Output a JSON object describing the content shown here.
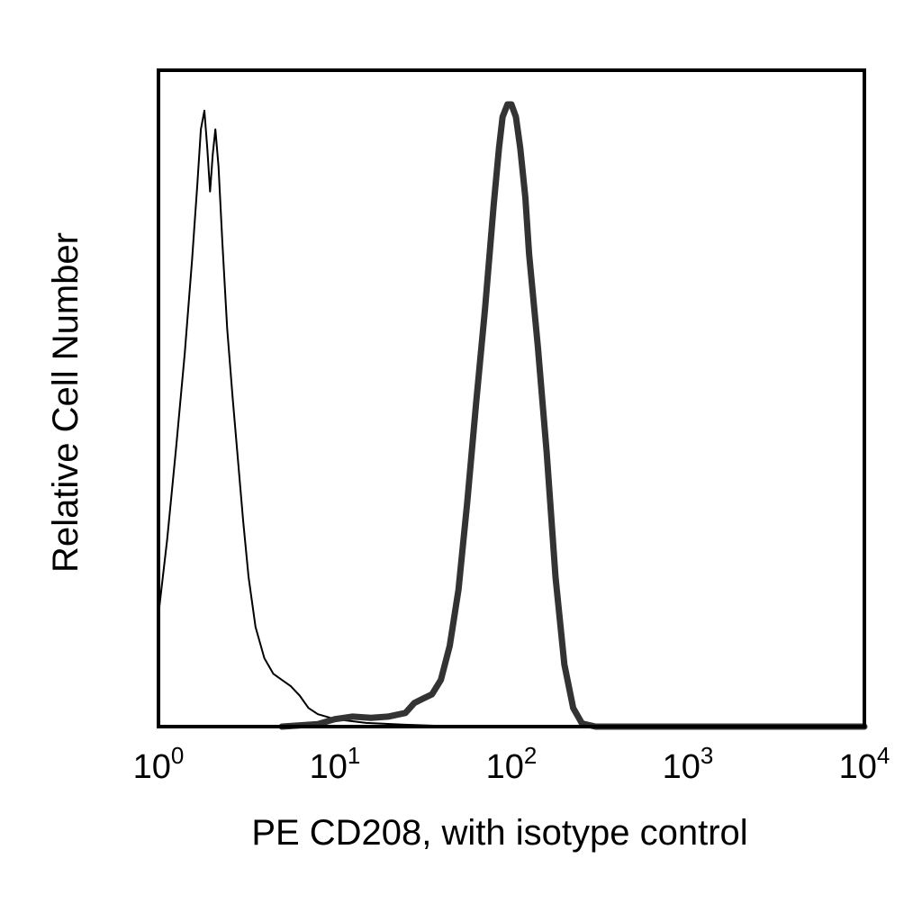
{
  "chart_data": {
    "type": "line",
    "title": "",
    "xlabel": "PE CD208, with isotype control",
    "ylabel": "Relative Cell Number",
    "x_scale": "log",
    "xlim": [
      1,
      10000
    ],
    "ylim": [
      0,
      1
    ],
    "grid": false,
    "legend": "none",
    "x_ticks": [
      {
        "value": 1,
        "base": "10",
        "exp": "0"
      },
      {
        "value": 10,
        "base": "10",
        "exp": "1"
      },
      {
        "value": 100,
        "base": "10",
        "exp": "2"
      },
      {
        "value": 1000,
        "base": "10",
        "exp": "3"
      },
      {
        "value": 10000,
        "base": "10",
        "exp": "4"
      }
    ],
    "series": [
      {
        "style": "thin",
        "color": "#000000",
        "points": [
          [
            1.0,
            0.18
          ],
          [
            1.12,
            0.3
          ],
          [
            1.26,
            0.45
          ],
          [
            1.41,
            0.6
          ],
          [
            1.55,
            0.75
          ],
          [
            1.66,
            0.87
          ],
          [
            1.74,
            0.96
          ],
          [
            1.82,
            0.99
          ],
          [
            1.89,
            0.93
          ],
          [
            1.96,
            0.86
          ],
          [
            2.03,
            0.92
          ],
          [
            2.1,
            0.96
          ],
          [
            2.19,
            0.9
          ],
          [
            2.3,
            0.78
          ],
          [
            2.45,
            0.64
          ],
          [
            2.63,
            0.53
          ],
          [
            2.82,
            0.43
          ],
          [
            3.02,
            0.33
          ],
          [
            3.24,
            0.24
          ],
          [
            3.55,
            0.16
          ],
          [
            3.98,
            0.11
          ],
          [
            4.47,
            0.085
          ],
          [
            5.01,
            0.075
          ],
          [
            5.62,
            0.065
          ],
          [
            6.31,
            0.05
          ],
          [
            7.08,
            0.03
          ],
          [
            8.0,
            0.02
          ],
          [
            10.0,
            0.012
          ],
          [
            15.0,
            0.006
          ],
          [
            25.0,
            0.003
          ],
          [
            40.0,
            0.001
          ]
        ]
      },
      {
        "style": "thick",
        "color": "#333333",
        "points": [
          [
            5.0,
            0.0
          ],
          [
            8.0,
            0.004
          ],
          [
            10.0,
            0.012
          ],
          [
            12.6,
            0.016
          ],
          [
            16.0,
            0.014
          ],
          [
            20.0,
            0.016
          ],
          [
            25.1,
            0.022
          ],
          [
            28.2,
            0.038
          ],
          [
            31.6,
            0.045
          ],
          [
            35.5,
            0.052
          ],
          [
            39.8,
            0.075
          ],
          [
            44.7,
            0.13
          ],
          [
            50.1,
            0.22
          ],
          [
            56.2,
            0.36
          ],
          [
            63.1,
            0.52
          ],
          [
            70.8,
            0.67
          ],
          [
            79.4,
            0.84
          ],
          [
            85.0,
            0.93
          ],
          [
            89.1,
            0.98
          ],
          [
            95.0,
            1.0
          ],
          [
            100.0,
            1.0
          ],
          [
            106.0,
            0.98
          ],
          [
            112.2,
            0.93
          ],
          [
            120.0,
            0.85
          ],
          [
            125.9,
            0.76
          ],
          [
            141.3,
            0.61
          ],
          [
            158.5,
            0.44
          ],
          [
            177.8,
            0.24
          ],
          [
            199.5,
            0.1
          ],
          [
            223.9,
            0.03
          ],
          [
            251.2,
            0.005
          ],
          [
            300.0,
            0.0
          ],
          [
            10000.0,
            0.0
          ]
        ]
      }
    ]
  }
}
